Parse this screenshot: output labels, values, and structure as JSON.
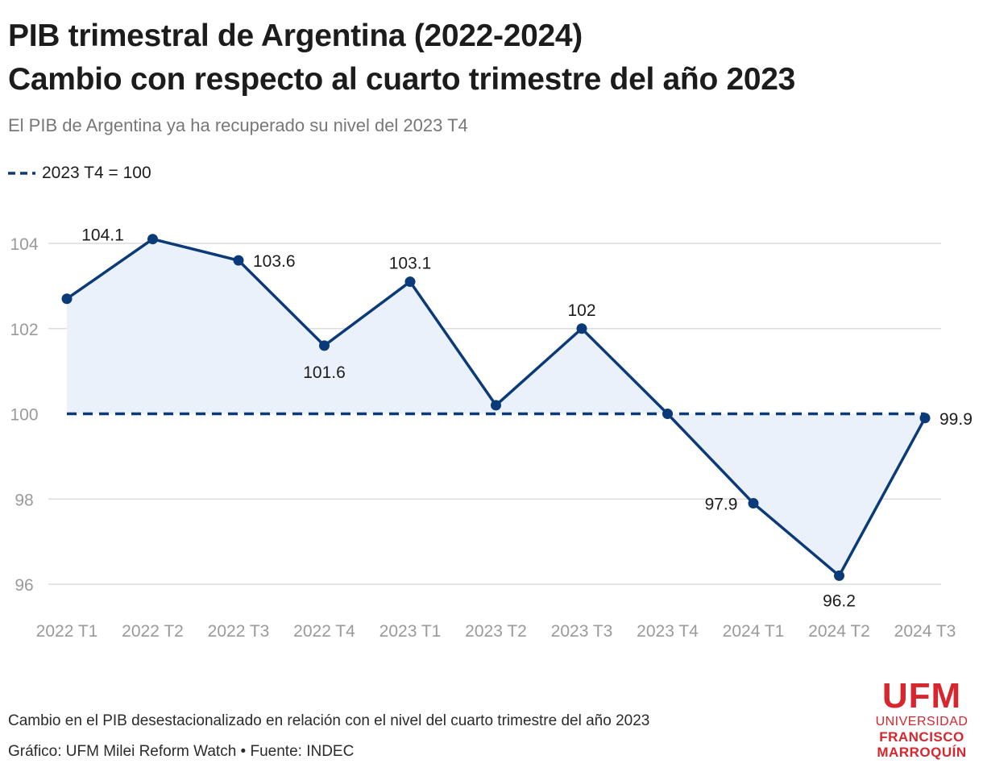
{
  "header": {
    "title_line1": "PIB trimestral de Argentina (2022-2024)",
    "title_line2": "Cambio con respecto al cuarto trimestre del año 2023",
    "subtitle": "El PIB de Argentina ya ha recuperado su nivel del 2023 T4"
  },
  "legend": {
    "label": "2023 T4 = 100",
    "position": "top-left"
  },
  "footer": {
    "note": "Cambio en el PIB desestacionalizado en relación con el nivel del cuarto trimestre del año 2023",
    "credit": "Gráfico: UFM Milei Reform Watch • Fuente: INDEC"
  },
  "logo": {
    "main": "UFM",
    "line1": "UNIVERSIDAD",
    "line2": "FRANCISCO",
    "line3": "MARROQUÍN"
  },
  "colors": {
    "line": "#0b3a78",
    "area": "#eaf1fb",
    "grid": "#dcdcdc",
    "reference": "#0b3a78",
    "logo": "#d7262e"
  },
  "chart_data": {
    "type": "line",
    "title": "PIB trimestral de Argentina (2022-2024)",
    "subtitle": "Cambio con respecto al cuarto trimestre del año 2023",
    "categories": [
      "2022 T1",
      "2022 T2",
      "2022 T3",
      "2022 T4",
      "2023 T1",
      "2023 T2",
      "2023 T3",
      "2023 T4",
      "2024 T1",
      "2024 T2",
      "2024 T3"
    ],
    "series": [
      {
        "values": [
          102.7,
          104.1,
          103.6,
          101.6,
          103.1,
          100.2,
          102.0,
          100.0,
          97.9,
          96.2,
          99.9
        ],
        "labels": [
          "",
          "104.1",
          "103.6",
          "101.6",
          "103.1",
          "",
          "102",
          "",
          "97.9",
          "96.2",
          "99.9"
        ]
      }
    ],
    "reference_line": {
      "value": 100,
      "name": "2023 T4 = 100",
      "style": "dashed"
    },
    "area_fill_to": 100,
    "yticks": [
      96,
      98,
      100,
      102,
      104
    ],
    "ylim": [
      95.4,
      105.2
    ],
    "grid": true,
    "xlabel": "",
    "ylabel": ""
  }
}
